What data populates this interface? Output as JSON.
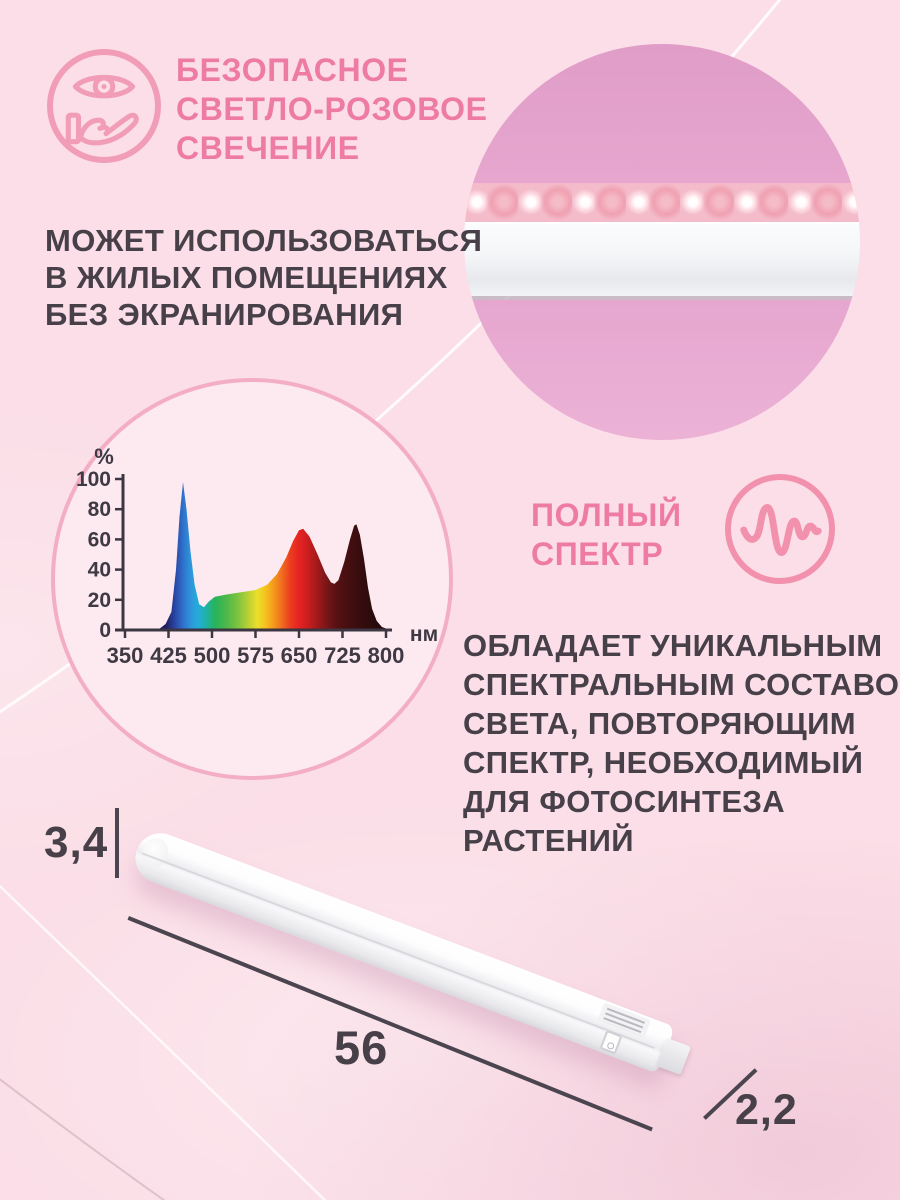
{
  "page": {
    "background": "#fbdee7",
    "accent_pink": "#ee7ba3",
    "text_dark": "#474049"
  },
  "safety": {
    "icon": "eye-hand-icon",
    "title_lines": [
      "БЕЗОПАСНОЕ",
      "СВЕТЛО-РОЗОВОЕ",
      "СВЕЧЕНИЕ"
    ],
    "body_lines": [
      "МОЖЕТ ИСПОЛЬЗОВАТЬСЯ",
      "В ЖИЛЫХ ПОМЕЩЕНИЯХ",
      "БЕЗ ЭКРАНИРОВАНИЯ"
    ]
  },
  "spectrum_section": {
    "icon": "waveform-icon",
    "title_lines": [
      "ПОЛНЫЙ",
      "СПЕКТР"
    ],
    "body_lines": [
      "ОБЛАДАЕТ УНИКАЛЬНЫМ",
      "СПЕКТРАЛЬНЫМ СОСТАВОМ",
      "СВЕТА, ПОВТОРЯЮЩИМ",
      "СПЕКТР, НЕОБХОДИМЫЙ",
      "ДЛЯ ФОТОСИНТЕЗА",
      "РАСТЕНИЙ"
    ]
  },
  "photo": {
    "subject": "led-strip-closeup",
    "background_pink": "#e6a6ce"
  },
  "dimensions": {
    "height": "3,4",
    "length": "56",
    "depth": "2,2"
  },
  "chart_data": {
    "type": "area",
    "title": "",
    "xlabel": "нм",
    "ylabel": "%",
    "x_range": [
      350,
      800
    ],
    "y_range": [
      0,
      100
    ],
    "x_ticks": [
      350,
      425,
      500,
      575,
      650,
      725,
      800
    ],
    "y_ticks": [
      0,
      20,
      40,
      60,
      80,
      100
    ],
    "grid": false,
    "points": [
      [
        350,
        1
      ],
      [
        410,
        1
      ],
      [
        420,
        4
      ],
      [
        430,
        12
      ],
      [
        438,
        40
      ],
      [
        444,
        75
      ],
      [
        450,
        98
      ],
      [
        456,
        80
      ],
      [
        463,
        52
      ],
      [
        470,
        30
      ],
      [
        478,
        17
      ],
      [
        486,
        15
      ],
      [
        495,
        19
      ],
      [
        505,
        22
      ],
      [
        525,
        23.5
      ],
      [
        550,
        25
      ],
      [
        575,
        26.5
      ],
      [
        595,
        30
      ],
      [
        612,
        37
      ],
      [
        628,
        48
      ],
      [
        640,
        59
      ],
      [
        650,
        66
      ],
      [
        657,
        67
      ],
      [
        668,
        62
      ],
      [
        682,
        50
      ],
      [
        695,
        38
      ],
      [
        705,
        31.5
      ],
      [
        711,
        30.5
      ],
      [
        718,
        33
      ],
      [
        728,
        45
      ],
      [
        738,
        60
      ],
      [
        745,
        69
      ],
      [
        749,
        70
      ],
      [
        755,
        63
      ],
      [
        762,
        47
      ],
      [
        769,
        28
      ],
      [
        776,
        14
      ],
      [
        784,
        6
      ],
      [
        793,
        2
      ],
      [
        800,
        1
      ]
    ],
    "gradient_stops": [
      [
        350,
        "#221e5e"
      ],
      [
        420,
        "#221e5e"
      ],
      [
        435,
        "#2a43a0"
      ],
      [
        450,
        "#2e71cc"
      ],
      [
        462,
        "#2e93d8"
      ],
      [
        475,
        "#25aadd"
      ],
      [
        490,
        "#1fb3a6"
      ],
      [
        505,
        "#27b35c"
      ],
      [
        525,
        "#4eb84a"
      ],
      [
        545,
        "#7ec43f"
      ],
      [
        565,
        "#c2d233"
      ],
      [
        578,
        "#eadf2b"
      ],
      [
        592,
        "#f6c21f"
      ],
      [
        606,
        "#f49a1c"
      ],
      [
        620,
        "#f06f1e"
      ],
      [
        635,
        "#ea3e20"
      ],
      [
        650,
        "#e62222"
      ],
      [
        665,
        "#cb1e20"
      ],
      [
        680,
        "#a51a1b"
      ],
      [
        700,
        "#731517"
      ],
      [
        715,
        "#571013"
      ],
      [
        730,
        "#490f11"
      ],
      [
        750,
        "#3c0d0f"
      ],
      [
        765,
        "#300c0d"
      ],
      [
        785,
        "#270a0b"
      ],
      [
        800,
        "#230a0b"
      ]
    ]
  }
}
